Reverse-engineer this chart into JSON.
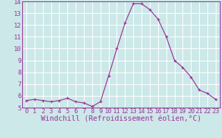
{
  "x": [
    0,
    1,
    2,
    3,
    4,
    5,
    6,
    7,
    8,
    9,
    10,
    11,
    12,
    13,
    14,
    15,
    16,
    17,
    18,
    19,
    20,
    21,
    22,
    23
  ],
  "y": [
    5.6,
    5.7,
    5.6,
    5.5,
    5.6,
    5.8,
    5.5,
    5.4,
    5.1,
    5.5,
    7.7,
    10.0,
    12.2,
    13.8,
    13.8,
    13.3,
    12.5,
    11.0,
    9.0,
    8.4,
    7.6,
    6.5,
    6.2,
    5.7
  ],
  "xlabel": "Windchill (Refroidissement éolien,°C)",
  "ylim": [
    5,
    14
  ],
  "xlim": [
    -0.5,
    23.5
  ],
  "yticks": [
    5,
    6,
    7,
    8,
    9,
    10,
    11,
    12,
    13,
    14
  ],
  "xticks": [
    0,
    1,
    2,
    3,
    4,
    5,
    6,
    7,
    8,
    9,
    10,
    11,
    12,
    13,
    14,
    15,
    16,
    17,
    18,
    19,
    20,
    21,
    22,
    23
  ],
  "line_color": "#993399",
  "marker_color": "#993399",
  "bg_color": "#cce8e8",
  "grid_color": "#ffffff",
  "axis_label_color": "#993399",
  "tick_label_color": "#993399",
  "font_size": 6.5,
  "xlabel_fontsize": 7.5
}
